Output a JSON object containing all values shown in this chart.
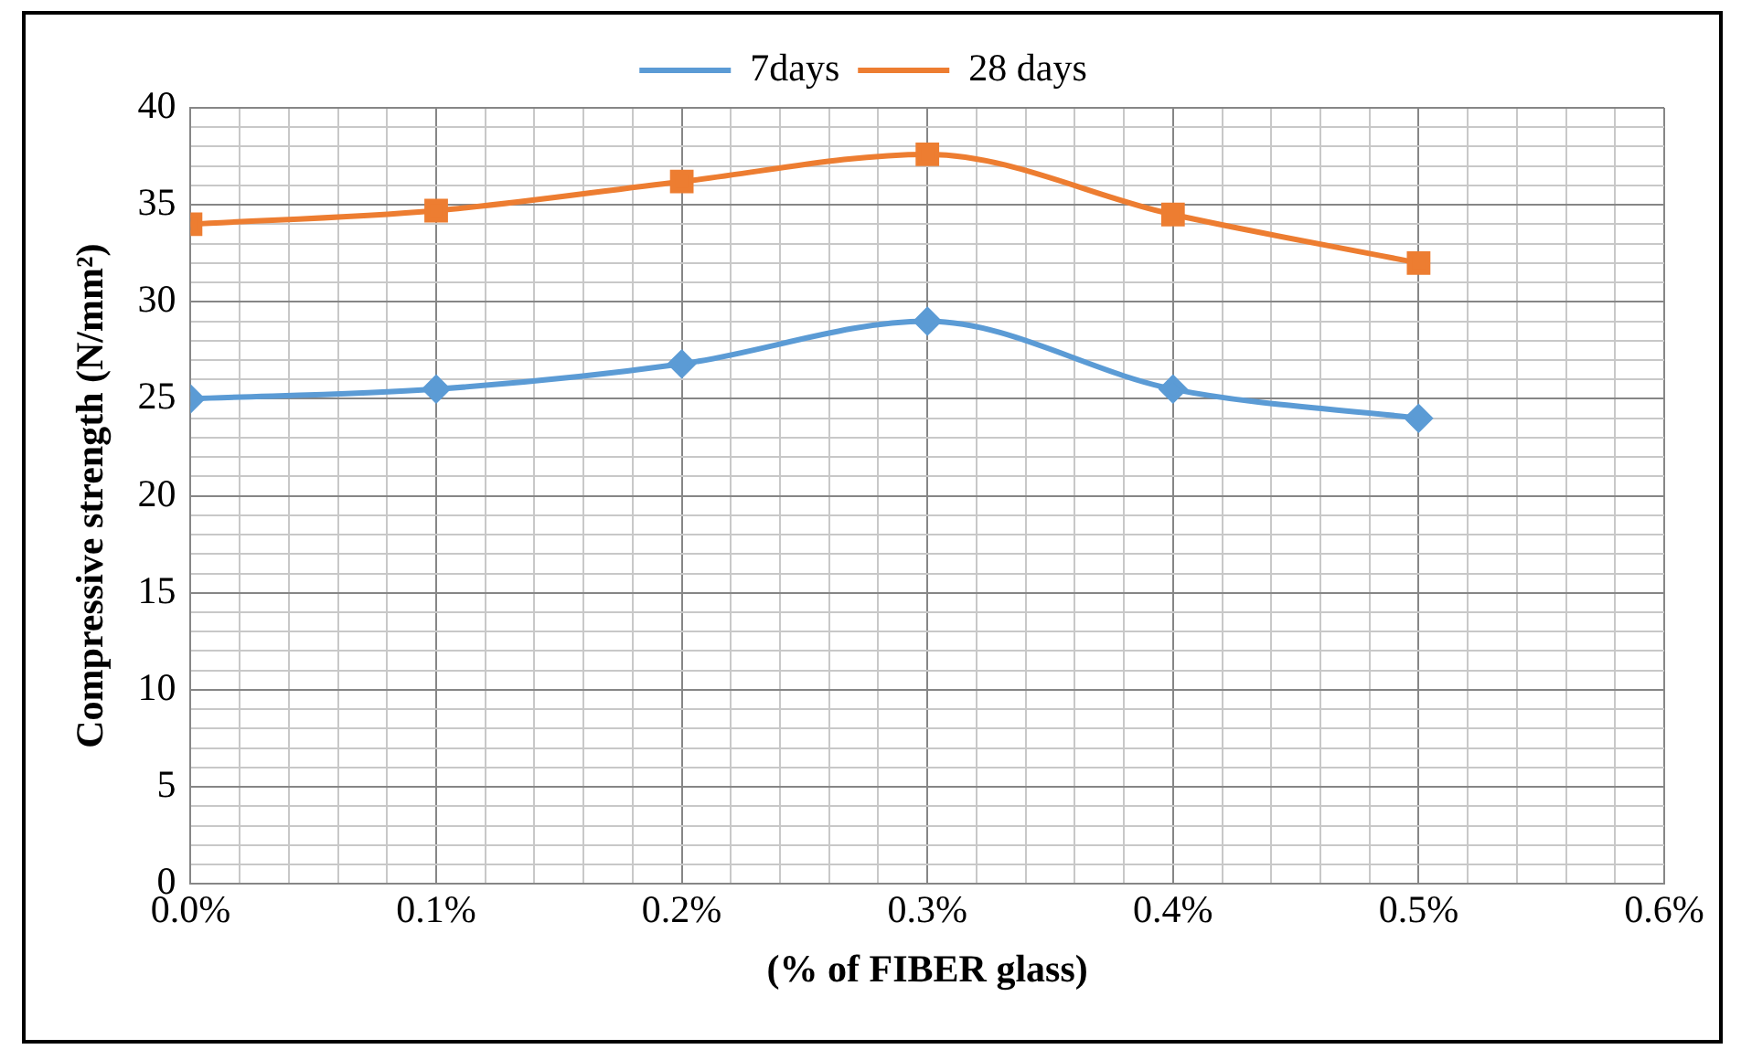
{
  "chart_data": {
    "type": "line",
    "xlabel": "(% of FIBER glass)",
    "ylabel": "Compressive strength (N/mm²)",
    "x": [
      0,
      0.1,
      0.2,
      0.3,
      0.4,
      0.5
    ],
    "series": [
      {
        "name": "7days",
        "color": "#5b9bd5",
        "marker": "diamond",
        "values": [
          25,
          25.5,
          26.8,
          29,
          25.5,
          24
        ]
      },
      {
        "name": "28 days",
        "color": "#ed7d31",
        "marker": "square",
        "values": [
          34,
          34.7,
          36.2,
          37.6,
          34.5,
          32
        ]
      }
    ],
    "xlim": [
      0,
      0.6
    ],
    "xticks": [
      {
        "value": 0,
        "label": "0.0%"
      },
      {
        "value": 0.02,
        "label": null
      },
      {
        "value": 0.04,
        "label": null
      },
      {
        "value": 0.06,
        "label": null
      },
      {
        "value": 0.08,
        "label": null
      },
      {
        "value": 0.1,
        "label": "0.1%"
      },
      {
        "value": 0.12,
        "label": null
      },
      {
        "value": 0.14,
        "label": null
      },
      {
        "value": 0.16,
        "label": null
      },
      {
        "value": 0.18,
        "label": null
      },
      {
        "value": 0.2,
        "label": "0.2%"
      },
      {
        "value": 0.22,
        "label": null
      },
      {
        "value": 0.24,
        "label": null
      },
      {
        "value": 0.26,
        "label": null
      },
      {
        "value": 0.28,
        "label": null
      },
      {
        "value": 0.3,
        "label": "0.3%"
      },
      {
        "value": 0.32,
        "label": null
      },
      {
        "value": 0.34,
        "label": null
      },
      {
        "value": 0.36,
        "label": null
      },
      {
        "value": 0.38,
        "label": null
      },
      {
        "value": 0.4,
        "label": "0.4%"
      },
      {
        "value": 0.42,
        "label": null
      },
      {
        "value": 0.44,
        "label": null
      },
      {
        "value": 0.46,
        "label": null
      },
      {
        "value": 0.48,
        "label": null
      },
      {
        "value": 0.5,
        "label": "0.5%"
      },
      {
        "value": 0.52,
        "label": null
      },
      {
        "value": 0.54,
        "label": null
      },
      {
        "value": 0.56,
        "label": null
      },
      {
        "value": 0.58,
        "label": null
      },
      {
        "value": 0.6,
        "label": "0.6%"
      }
    ],
    "ylim": [
      0,
      40
    ],
    "yticks": [
      0,
      {
        "value": 1,
        "label": null
      },
      {
        "value": 2,
        "label": null
      },
      {
        "value": 3,
        "label": null
      },
      {
        "value": 4,
        "label": null
      },
      5,
      {
        "value": 6,
        "label": null
      },
      {
        "value": 7,
        "label": null
      },
      {
        "value": 8,
        "label": null
      },
      {
        "value": 9,
        "label": null
      },
      10,
      {
        "value": 11,
        "label": null
      },
      {
        "value": 12,
        "label": null
      },
      {
        "value": 13,
        "label": null
      },
      {
        "value": 14,
        "label": null
      },
      15,
      {
        "value": 16,
        "label": null
      },
      {
        "value": 17,
        "label": null
      },
      {
        "value": 18,
        "label": null
      },
      {
        "value": 19,
        "label": null
      },
      20,
      {
        "value": 21,
        "label": null
      },
      {
        "value": 22,
        "label": null
      },
      {
        "value": 23,
        "label": null
      },
      {
        "value": 24,
        "label": null
      },
      25,
      {
        "value": 26,
        "label": null
      },
      {
        "value": 27,
        "label": null
      },
      {
        "value": 28,
        "label": null
      },
      {
        "value": 29,
        "label": null
      },
      30,
      {
        "value": 31,
        "label": null
      },
      {
        "value": 32,
        "label": null
      },
      {
        "value": 33,
        "label": null
      },
      {
        "value": 34,
        "label": null
      },
      35,
      {
        "value": 36,
        "label": null
      },
      {
        "value": 37,
        "label": null
      },
      {
        "value": 38,
        "label": null
      },
      {
        "value": 39,
        "label": null
      },
      40
    ],
    "grid": true,
    "legend": "top",
    "line_style": "solid"
  }
}
